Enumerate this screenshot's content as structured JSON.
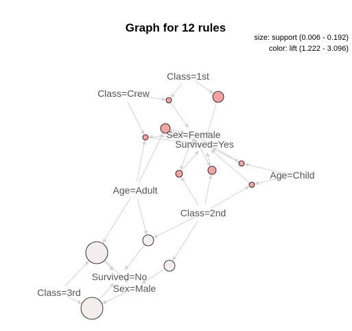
{
  "title": "Graph for 12 rules",
  "legend": {
    "size": "size: support (0.006 - 0.192)",
    "color": "color: lift (1.222 - 3.096)"
  },
  "items": [
    {
      "id": "class1st",
      "label": "Class=1st"
    },
    {
      "id": "classcrew",
      "label": "Class=Crew"
    },
    {
      "id": "sexfemale",
      "label": "Sex=Female"
    },
    {
      "id": "survivedyes",
      "label": "Survived=Yes"
    },
    {
      "id": "agechild",
      "label": "Age=Child"
    },
    {
      "id": "ageadult",
      "label": "Age=Adult"
    },
    {
      "id": "class2nd",
      "label": "Class=2nd"
    },
    {
      "id": "survivedno",
      "label": "Survived=No"
    },
    {
      "id": "sexmale",
      "label": "Sex=Male"
    },
    {
      "id": "class3rd",
      "label": "Class=3rd"
    }
  ],
  "rules": [
    {
      "id": "r1",
      "color": "#f4a3a3"
    },
    {
      "id": "r2",
      "color": "#f4a3a3"
    },
    {
      "id": "r3",
      "color": "#f4a3a3"
    },
    {
      "id": "r4",
      "color": "#f4a3a3"
    },
    {
      "id": "r5",
      "color": "#f4a3a3"
    },
    {
      "id": "r6",
      "color": "#f4a3a3"
    },
    {
      "id": "r7",
      "color": "#f4a3a3"
    },
    {
      "id": "r8",
      "color": "#f4a3a3"
    },
    {
      "id": "r9",
      "color": "#f4eded"
    },
    {
      "id": "r10",
      "color": "#f4eded"
    },
    {
      "id": "r11",
      "color": "#f4eded"
    },
    {
      "id": "r12",
      "color": "#f4eded"
    }
  ],
  "colors": {
    "edge": "#d3d3d3",
    "label": "#555555",
    "high_lift": "#f4a3a3",
    "low_lift": "#f4eded"
  }
}
